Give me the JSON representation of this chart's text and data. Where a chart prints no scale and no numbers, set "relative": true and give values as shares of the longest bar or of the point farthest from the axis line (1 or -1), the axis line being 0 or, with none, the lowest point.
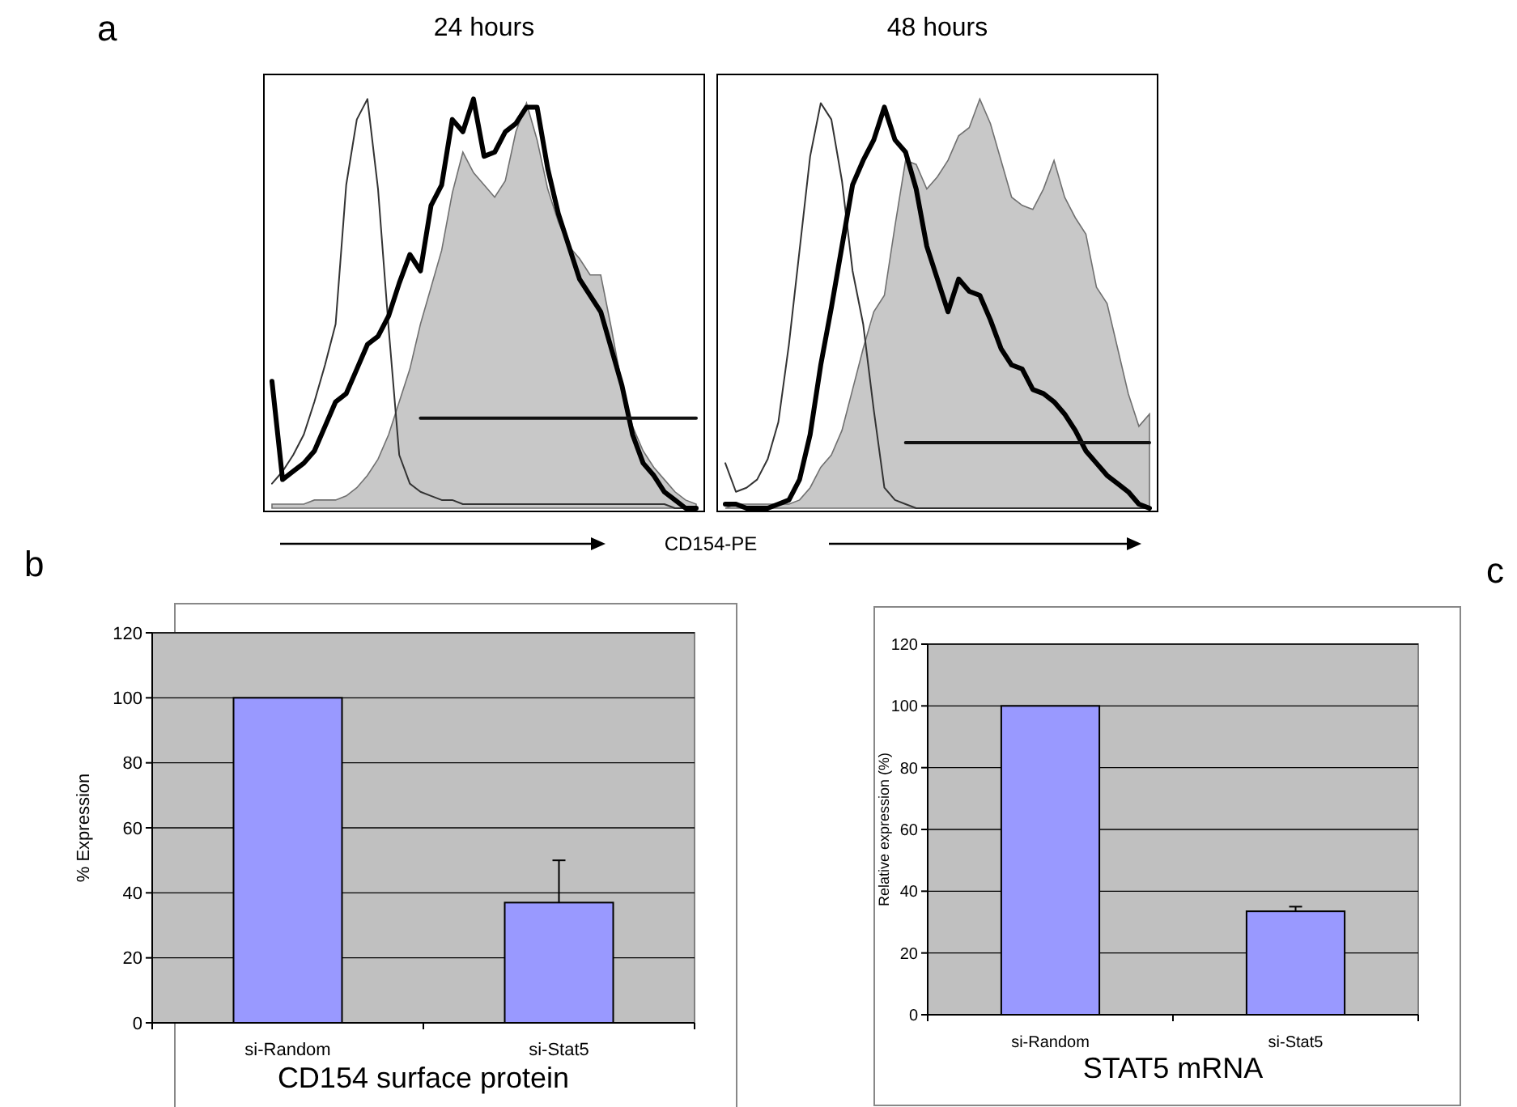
{
  "chart_data": [
    {
      "type": "line",
      "title": "24 hours",
      "xlabel": "CD154-PE",
      "annotations": [
        "a"
      ],
      "relative": true,
      "tick_labels": false,
      "grid": false,
      "legend": false,
      "categories": [
        null,
        null,
        null,
        null,
        null,
        null,
        null,
        null,
        null,
        null,
        null,
        null,
        null,
        null,
        null,
        null,
        null,
        null,
        null,
        null,
        null,
        null,
        null,
        null,
        null,
        null,
        null,
        null,
        null,
        null,
        null,
        null,
        null,
        null,
        null,
        null,
        null,
        null,
        null,
        null,
        null
      ],
      "series": [
        {
          "type": "area",
          "color": "#c8c8c8",
          "values": [
            0.01,
            0.01,
            0.01,
            0.01,
            0.02,
            0.02,
            0.02,
            0.03,
            0.05,
            0.08,
            0.12,
            0.18,
            0.26,
            0.34,
            0.45,
            0.54,
            0.63,
            0.77,
            0.87,
            0.82,
            0.79,
            0.76,
            0.8,
            0.92,
            0.99,
            0.9,
            0.78,
            0.7,
            0.64,
            0.61,
            0.57,
            0.57,
            0.44,
            0.3,
            0.2,
            0.14,
            0.1,
            0.07,
            0.04,
            0.02,
            0.01
          ]
        },
        {
          "type": "line",
          "color": "#333333",
          "values": [
            0.06,
            0.09,
            0.13,
            0.18,
            0.26,
            0.35,
            0.45,
            0.79,
            0.95,
            1,
            0.78,
            0.44,
            0.13,
            0.06,
            0.04,
            0.03,
            0.02,
            0.02,
            0.01,
            0.01,
            0.01,
            0.01,
            0.01,
            0.01,
            0.01,
            0.01,
            0.01,
            0.01,
            0.01,
            0.01,
            0.01,
            0.01,
            0.01,
            0.01,
            0.01,
            0.01,
            0.01,
            0.01,
            0,
            0,
            0
          ]
        },
        {
          "type": "line",
          "color": "#000000",
          "values": [
            0.31,
            0.07,
            0.09,
            0.11,
            0.14,
            0.2,
            0.26,
            0.28,
            0.34,
            0.4,
            0.42,
            0.47,
            0.55,
            0.62,
            0.58,
            0.74,
            0.79,
            0.95,
            0.92,
            1,
            0.86,
            0.87,
            0.92,
            0.94,
            0.98,
            0.98,
            0.83,
            0.72,
            0.64,
            0.56,
            0.52,
            0.48,
            0.39,
            0.3,
            0.18,
            0.11,
            0.08,
            0.04,
            0.02,
            0,
            0
          ]
        },
        {
          "type": "line",
          "color": "#111111",
          "values": [
            null,
            null,
            null,
            null,
            null,
            null,
            null,
            null,
            null,
            null,
            null,
            null,
            null,
            null,
            0.22,
            0.22,
            0.22,
            0.22,
            0.22,
            0.22,
            0.22,
            0.22,
            0.22,
            0.22,
            0.22,
            0.22,
            0.22,
            0.22,
            0.22,
            0.22,
            0.22,
            0.22,
            0.22,
            0.22,
            0.22,
            0.22,
            0.22,
            0.22,
            0.22,
            0.22,
            0.22
          ]
        }
      ]
    },
    {
      "type": "line",
      "title": "48 hours",
      "relative": true,
      "tick_labels": false,
      "grid": false,
      "legend": false,
      "categories": [
        null,
        null,
        null,
        null,
        null,
        null,
        null,
        null,
        null,
        null,
        null,
        null,
        null,
        null,
        null,
        null,
        null,
        null,
        null,
        null,
        null,
        null,
        null,
        null,
        null,
        null,
        null,
        null,
        null,
        null,
        null,
        null,
        null,
        null,
        null,
        null,
        null,
        null,
        null,
        null,
        null
      ],
      "series": [
        {
          "type": "area",
          "color": "#c8c8c8",
          "values": [
            0,
            0.01,
            0.01,
            0.01,
            0.01,
            0.01,
            0.01,
            0.02,
            0.05,
            0.1,
            0.13,
            0.19,
            0.29,
            0.39,
            0.48,
            0.52,
            0.69,
            0.85,
            0.84,
            0.78,
            0.81,
            0.85,
            0.91,
            0.93,
            1,
            0.94,
            0.85,
            0.76,
            0.74,
            0.73,
            0.78,
            0.85,
            0.76,
            0.71,
            0.67,
            0.54,
            0.5,
            0.39,
            0.28,
            0.2,
            0.23
          ]
        },
        {
          "type": "line",
          "color": "#333333",
          "values": [
            0.11,
            0.04,
            0.05,
            0.07,
            0.12,
            0.21,
            0.4,
            0.63,
            0.86,
            0.99,
            0.95,
            0.8,
            0.58,
            0.45,
            0.24,
            0.05,
            0.02,
            0.01,
            0,
            0,
            0,
            0,
            0,
            0,
            0,
            0,
            0,
            0,
            0,
            0,
            0,
            0,
            0,
            0,
            0,
            0,
            0,
            0,
            0,
            0,
            0
          ]
        },
        {
          "type": "line",
          "color": "#000000",
          "values": [
            0.01,
            0.01,
            0,
            0,
            0,
            0.01,
            0.02,
            0.07,
            0.18,
            0.35,
            0.49,
            0.64,
            0.79,
            0.85,
            0.9,
            0.98,
            0.9,
            0.87,
            0.78,
            0.64,
            0.56,
            0.48,
            0.56,
            0.53,
            0.52,
            0.46,
            0.39,
            0.35,
            0.34,
            0.29,
            0.28,
            0.26,
            0.23,
            0.19,
            0.14,
            0.11,
            0.08,
            0.06,
            0.04,
            0.01,
            0
          ]
        },
        {
          "type": "line",
          "color": "#111111",
          "values": [
            null,
            null,
            null,
            null,
            null,
            null,
            null,
            null,
            null,
            null,
            null,
            null,
            null,
            null,
            null,
            null,
            null,
            0.16,
            0.16,
            0.16,
            0.16,
            0.16,
            0.16,
            0.16,
            0.16,
            0.16,
            0.16,
            0.16,
            0.16,
            0.16,
            0.16,
            0.16,
            0.16,
            0.16,
            0.16,
            0.16,
            0.16,
            0.16,
            0.16,
            0.16,
            0.16
          ]
        }
      ]
    },
    {
      "type": "bar",
      "xlabel": "CD154 surface protein",
      "ylabel": "% Expression",
      "annotations": [
        "b"
      ],
      "categories": [
        "si-Random",
        "si-Stat5"
      ],
      "values": [
        100,
        37
      ],
      "errors": [
        null,
        [
          37,
          50
        ]
      ],
      "color": "#9999ff",
      "ylim": [
        0,
        120
      ],
      "yticks": [
        0,
        20,
        40,
        60,
        80,
        100,
        120
      ],
      "grid": "y",
      "legend": false
    },
    {
      "type": "bar",
      "xlabel": "STAT5 mRNA",
      "ylabel": "Relative expression (%)",
      "annotations": [
        "c"
      ],
      "categories": [
        "si-Random",
        "si-Stat5"
      ],
      "values": [
        100,
        33.5
      ],
      "errors": [
        null,
        [
          33.5,
          35
        ]
      ],
      "color": "#9999ff",
      "ylim": [
        0,
        120
      ],
      "yticks": [
        0,
        20,
        40,
        60,
        80,
        100,
        120
      ],
      "grid": "y",
      "legend": false
    }
  ]
}
